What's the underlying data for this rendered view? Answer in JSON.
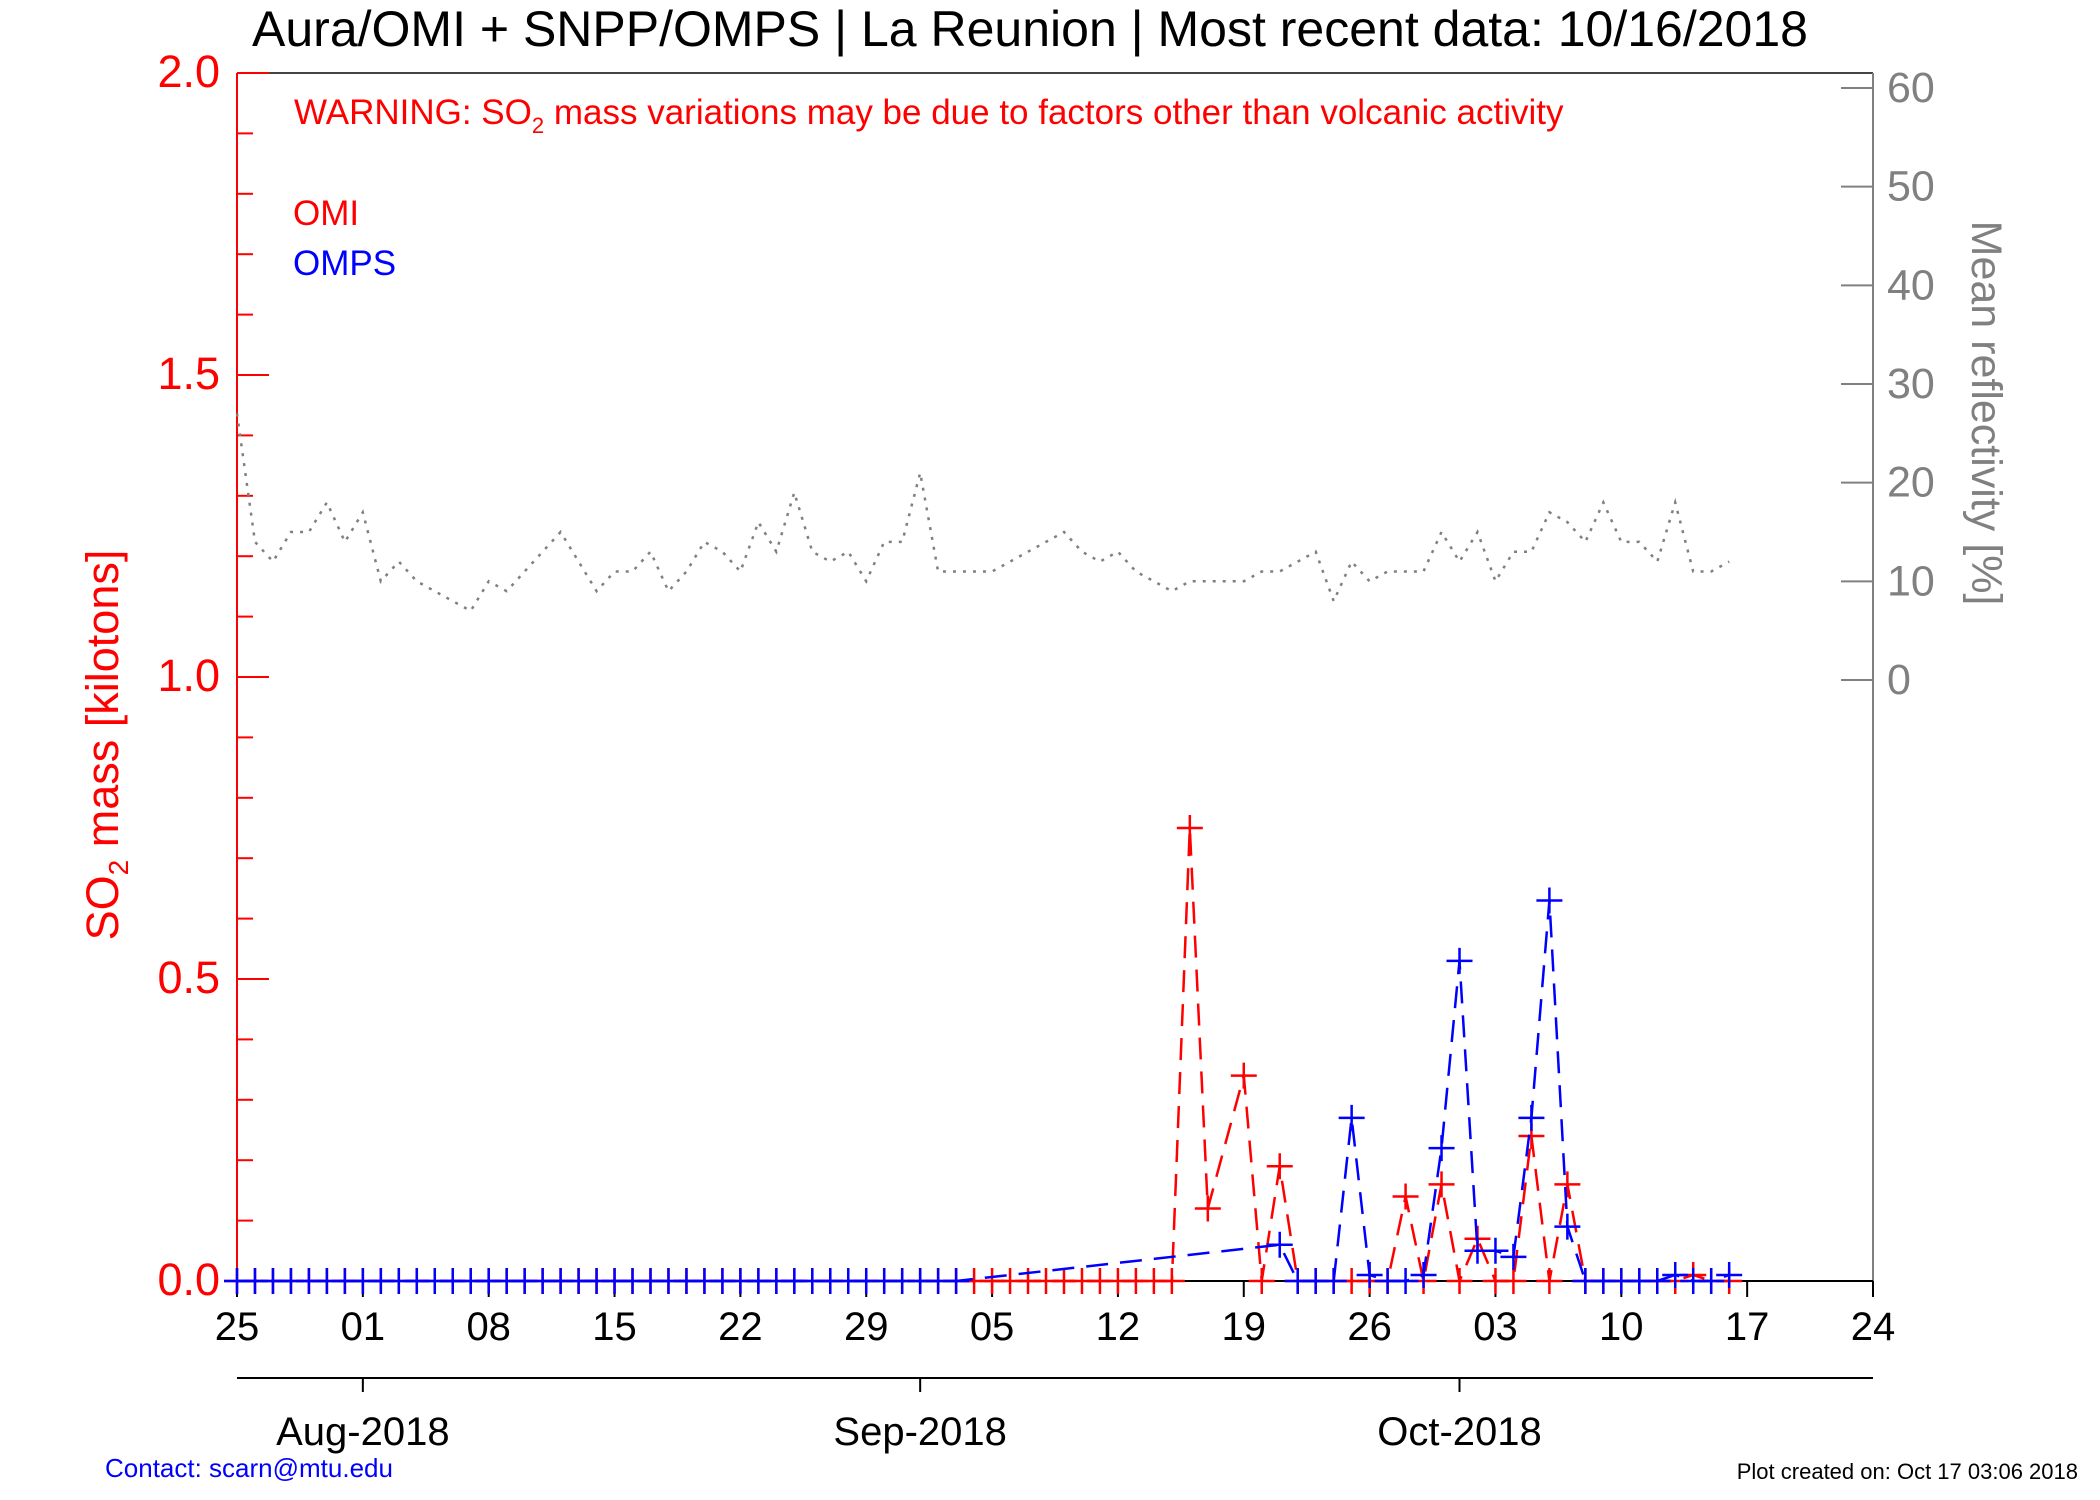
{
  "chart_data": {
    "type": "line",
    "title": "Aura/OMI + SNPP/OMPS | La Reunion | Most recent data: 10/16/2018",
    "warning": {
      "prefix": "WARNING: SO",
      "subscript": "2",
      "suffix": " mass variations may be due to factors other than volcanic activity"
    },
    "ylabel": {
      "prefix": "SO",
      "subscript": "2",
      "suffix": " mass [kilotons]"
    },
    "y2label": "Mean reflectivity [%]",
    "x_start": "2018-07-25",
    "xlim": [
      "2018-07-25",
      "2018-10-24"
    ],
    "ylim": [
      0,
      2.0
    ],
    "y2lim": [
      0,
      60
    ],
    "y_ticks": [
      "0.0",
      "0.5",
      "1.0",
      "1.5",
      "2.0"
    ],
    "y2_ticks": [
      "0",
      "10",
      "20",
      "30",
      "40",
      "50",
      "60"
    ],
    "x_ticks": [
      {
        "date": "2018-07-25",
        "label": "25"
      },
      {
        "date": "2018-08-01",
        "label": "01"
      },
      {
        "date": "2018-08-08",
        "label": "08"
      },
      {
        "date": "2018-08-15",
        "label": "15"
      },
      {
        "date": "2018-08-22",
        "label": "22"
      },
      {
        "date": "2018-08-29",
        "label": "29"
      },
      {
        "date": "2018-09-05",
        "label": "05"
      },
      {
        "date": "2018-09-12",
        "label": "12"
      },
      {
        "date": "2018-09-19",
        "label": "19"
      },
      {
        "date": "2018-09-26",
        "label": "26"
      },
      {
        "date": "2018-10-03",
        "label": "03"
      },
      {
        "date": "2018-10-10",
        "label": "10"
      },
      {
        "date": "2018-10-17",
        "label": "17"
      },
      {
        "date": "2018-10-24",
        "label": "24"
      }
    ],
    "months": [
      {
        "date": "2018-08-01",
        "label": "Aug-2018"
      },
      {
        "date": "2018-09-01",
        "label": "Sep-2018"
      },
      {
        "date": "2018-10-01",
        "label": "Oct-2018"
      }
    ],
    "legend": [
      {
        "name": "OMI",
        "color": "#ff0000"
      },
      {
        "name": "OMPS",
        "color": "#0000ff"
      }
    ],
    "series": [
      {
        "name": "OMI",
        "color": "#ff0000",
        "style": "dashed",
        "marker": "plus",
        "points": [
          [
            "2018-07-25",
            0
          ],
          [
            "2018-07-26",
            0
          ],
          [
            "2018-07-27",
            0
          ],
          [
            "2018-07-28",
            0
          ],
          [
            "2018-07-29",
            0
          ],
          [
            "2018-07-30",
            0
          ],
          [
            "2018-07-31",
            0
          ],
          [
            "2018-08-01",
            0
          ],
          [
            "2018-08-02",
            0
          ],
          [
            "2018-08-03",
            0
          ],
          [
            "2018-08-04",
            0
          ],
          [
            "2018-08-05",
            0
          ],
          [
            "2018-08-06",
            0
          ],
          [
            "2018-08-07",
            0
          ],
          [
            "2018-08-08",
            0
          ],
          [
            "2018-08-09",
            0
          ],
          [
            "2018-08-10",
            0
          ],
          [
            "2018-08-11",
            0
          ],
          [
            "2018-08-12",
            0
          ],
          [
            "2018-08-13",
            0
          ],
          [
            "2018-08-14",
            0
          ],
          [
            "2018-08-15",
            0
          ],
          [
            "2018-08-16",
            0
          ],
          [
            "2018-08-17",
            0
          ],
          [
            "2018-08-18",
            0
          ],
          [
            "2018-08-19",
            0
          ],
          [
            "2018-08-20",
            0
          ],
          [
            "2018-08-21",
            0
          ],
          [
            "2018-08-22",
            0
          ],
          [
            "2018-08-23",
            0
          ],
          [
            "2018-08-24",
            0
          ],
          [
            "2018-08-25",
            0
          ],
          [
            "2018-08-26",
            0
          ],
          [
            "2018-08-27",
            0
          ],
          [
            "2018-08-28",
            0
          ],
          [
            "2018-08-29",
            0
          ],
          [
            "2018-08-30",
            0
          ],
          [
            "2018-08-31",
            0
          ],
          [
            "2018-09-01",
            0
          ],
          [
            "2018-09-02",
            0
          ],
          [
            "2018-09-03",
            0
          ],
          [
            "2018-09-04",
            0
          ],
          [
            "2018-09-05",
            0
          ],
          [
            "2018-09-06",
            0
          ],
          [
            "2018-09-07",
            0
          ],
          [
            "2018-09-08",
            0
          ],
          [
            "2018-09-09",
            0
          ],
          [
            "2018-09-10",
            0
          ],
          [
            "2018-09-11",
            0
          ],
          [
            "2018-09-12",
            0
          ],
          [
            "2018-09-13",
            0
          ],
          [
            "2018-09-14",
            0
          ],
          [
            "2018-09-15",
            0
          ],
          [
            "2018-09-16",
            0.75
          ],
          [
            "2018-09-17",
            0.12
          ],
          [
            "2018-09-19",
            0.34
          ],
          [
            "2018-09-20",
            0
          ],
          [
            "2018-09-21",
            0.19
          ],
          [
            "2018-09-22",
            0
          ],
          [
            "2018-09-23",
            0
          ],
          [
            "2018-09-24",
            0
          ],
          [
            "2018-09-25",
            0
          ],
          [
            "2018-09-26",
            0
          ],
          [
            "2018-09-27",
            0
          ],
          [
            "2018-09-28",
            0.14
          ],
          [
            "2018-09-29",
            0
          ],
          [
            "2018-09-30",
            0.16
          ],
          [
            "2018-10-01",
            0
          ],
          [
            "2018-10-02",
            0.07
          ],
          [
            "2018-10-03",
            0
          ],
          [
            "2018-10-04",
            0
          ],
          [
            "2018-10-05",
            0.24
          ],
          [
            "2018-10-06",
            0
          ],
          [
            "2018-10-07",
            0.16
          ],
          [
            "2018-10-08",
            0
          ],
          [
            "2018-10-09",
            0
          ],
          [
            "2018-10-10",
            0
          ],
          [
            "2018-10-11",
            0
          ],
          [
            "2018-10-12",
            0
          ],
          [
            "2018-10-13",
            0
          ],
          [
            "2018-10-14",
            0.01
          ],
          [
            "2018-10-15",
            0
          ],
          [
            "2018-10-16",
            0
          ]
        ]
      },
      {
        "name": "OMPS",
        "color": "#0000ff",
        "style": "dashed",
        "marker": "plus",
        "points": [
          [
            "2018-07-25",
            0
          ],
          [
            "2018-07-26",
            0
          ],
          [
            "2018-07-27",
            0
          ],
          [
            "2018-07-28",
            0
          ],
          [
            "2018-07-29",
            0
          ],
          [
            "2018-07-30",
            0
          ],
          [
            "2018-07-31",
            0
          ],
          [
            "2018-08-01",
            0
          ],
          [
            "2018-08-02",
            0
          ],
          [
            "2018-08-03",
            0
          ],
          [
            "2018-08-04",
            0
          ],
          [
            "2018-08-05",
            0
          ],
          [
            "2018-08-06",
            0
          ],
          [
            "2018-08-07",
            0
          ],
          [
            "2018-08-08",
            0
          ],
          [
            "2018-08-09",
            0
          ],
          [
            "2018-08-10",
            0
          ],
          [
            "2018-08-11",
            0
          ],
          [
            "2018-08-12",
            0
          ],
          [
            "2018-08-13",
            0
          ],
          [
            "2018-08-14",
            0
          ],
          [
            "2018-08-15",
            0
          ],
          [
            "2018-08-16",
            0
          ],
          [
            "2018-08-17",
            0
          ],
          [
            "2018-08-18",
            0
          ],
          [
            "2018-08-19",
            0
          ],
          [
            "2018-08-20",
            0
          ],
          [
            "2018-08-21",
            0
          ],
          [
            "2018-08-22",
            0
          ],
          [
            "2018-08-23",
            0
          ],
          [
            "2018-08-24",
            0
          ],
          [
            "2018-08-25",
            0
          ],
          [
            "2018-08-26",
            0
          ],
          [
            "2018-08-27",
            0
          ],
          [
            "2018-08-28",
            0
          ],
          [
            "2018-08-29",
            0
          ],
          [
            "2018-08-30",
            0
          ],
          [
            "2018-08-31",
            0
          ],
          [
            "2018-09-01",
            0
          ],
          [
            "2018-09-02",
            0
          ],
          [
            "2018-09-03",
            0
          ],
          [
            "2018-09-21",
            0.06
          ],
          [
            "2018-09-22",
            0
          ],
          [
            "2018-09-23",
            0
          ],
          [
            "2018-09-24",
            0
          ],
          [
            "2018-09-25",
            0.27
          ],
          [
            "2018-09-26",
            0.01
          ],
          [
            "2018-09-27",
            0
          ],
          [
            "2018-09-28",
            0
          ],
          [
            "2018-09-29",
            0.01
          ],
          [
            "2018-09-30",
            0.22
          ],
          [
            "2018-10-01",
            0.53
          ],
          [
            "2018-10-02",
            0.05
          ],
          [
            "2018-10-03",
            0.05
          ],
          [
            "2018-10-04",
            0.04
          ],
          [
            "2018-10-05",
            0.27
          ],
          [
            "2018-10-06",
            0.63
          ],
          [
            "2018-10-07",
            0.09
          ],
          [
            "2018-10-08",
            0
          ],
          [
            "2018-10-09",
            0
          ],
          [
            "2018-10-10",
            0
          ],
          [
            "2018-10-11",
            0
          ],
          [
            "2018-10-12",
            0
          ],
          [
            "2018-10-13",
            0.01
          ],
          [
            "2018-10-14",
            0
          ],
          [
            "2018-10-15",
            0
          ],
          [
            "2018-10-16",
            0.01
          ]
        ]
      },
      {
        "name": "Mean reflectivity",
        "color": "#808080",
        "style": "dotted",
        "axis": "right",
        "points": [
          [
            "2018-07-25",
            27
          ],
          [
            "2018-07-26",
            14
          ],
          [
            "2018-07-27",
            12
          ],
          [
            "2018-07-28",
            15
          ],
          [
            "2018-07-29",
            15
          ],
          [
            "2018-07-30",
            18
          ],
          [
            "2018-07-31",
            14
          ],
          [
            "2018-08-01",
            17
          ],
          [
            "2018-08-02",
            10
          ],
          [
            "2018-08-03",
            12
          ],
          [
            "2018-08-04",
            10
          ],
          [
            "2018-08-05",
            9
          ],
          [
            "2018-08-06",
            8
          ],
          [
            "2018-08-07",
            7
          ],
          [
            "2018-08-08",
            10
          ],
          [
            "2018-08-09",
            9
          ],
          [
            "2018-08-10",
            11
          ],
          [
            "2018-08-11",
            13
          ],
          [
            "2018-08-12",
            15
          ],
          [
            "2018-08-13",
            12
          ],
          [
            "2018-08-14",
            9
          ],
          [
            "2018-08-15",
            11
          ],
          [
            "2018-08-16",
            11
          ],
          [
            "2018-08-17",
            13
          ],
          [
            "2018-08-18",
            9
          ],
          [
            "2018-08-19",
            11
          ],
          [
            "2018-08-20",
            14
          ],
          [
            "2018-08-21",
            13
          ],
          [
            "2018-08-22",
            11
          ],
          [
            "2018-08-23",
            16
          ],
          [
            "2018-08-24",
            13
          ],
          [
            "2018-08-25",
            19
          ],
          [
            "2018-08-26",
            13
          ],
          [
            "2018-08-27",
            12
          ],
          [
            "2018-08-28",
            13
          ],
          [
            "2018-08-29",
            10
          ],
          [
            "2018-08-30",
            14
          ],
          [
            "2018-08-31",
            14
          ],
          [
            "2018-09-01",
            21
          ],
          [
            "2018-09-02",
            11
          ],
          [
            "2018-09-03",
            11
          ],
          [
            "2018-09-04",
            11
          ],
          [
            "2018-09-05",
            11
          ],
          [
            "2018-09-06",
            12
          ],
          [
            "2018-09-07",
            13
          ],
          [
            "2018-09-08",
            14
          ],
          [
            "2018-09-09",
            15
          ],
          [
            "2018-09-10",
            13
          ],
          [
            "2018-09-11",
            12
          ],
          [
            "2018-09-12",
            13
          ],
          [
            "2018-09-13",
            11
          ],
          [
            "2018-09-14",
            10
          ],
          [
            "2018-09-15",
            9
          ],
          [
            "2018-09-16",
            10
          ],
          [
            "2018-09-17",
            10
          ],
          [
            "2018-09-18",
            10
          ],
          [
            "2018-09-19",
            10
          ],
          [
            "2018-09-20",
            11
          ],
          [
            "2018-09-21",
            11
          ],
          [
            "2018-09-22",
            12
          ],
          [
            "2018-09-23",
            13
          ],
          [
            "2018-09-24",
            8
          ],
          [
            "2018-09-25",
            12
          ],
          [
            "2018-09-26",
            10
          ],
          [
            "2018-09-27",
            11
          ],
          [
            "2018-09-28",
            11
          ],
          [
            "2018-09-29",
            11
          ],
          [
            "2018-09-30",
            15
          ],
          [
            "2018-10-01",
            12
          ],
          [
            "2018-10-02",
            15
          ],
          [
            "2018-10-03",
            10
          ],
          [
            "2018-10-04",
            13
          ],
          [
            "2018-10-05",
            13
          ],
          [
            "2018-10-06",
            17
          ],
          [
            "2018-10-07",
            16
          ],
          [
            "2018-10-08",
            14
          ],
          [
            "2018-10-09",
            18
          ],
          [
            "2018-10-10",
            14
          ],
          [
            "2018-10-11",
            14
          ],
          [
            "2018-10-12",
            12
          ],
          [
            "2018-10-13",
            18
          ],
          [
            "2018-10-14",
            11
          ],
          [
            "2018-10-15",
            11
          ],
          [
            "2018-10-16",
            12
          ]
        ]
      }
    ]
  },
  "footer": {
    "contact": "Contact: scarn@mtu.edu",
    "created": "Plot created on: Oct 17 03:06 2018"
  }
}
